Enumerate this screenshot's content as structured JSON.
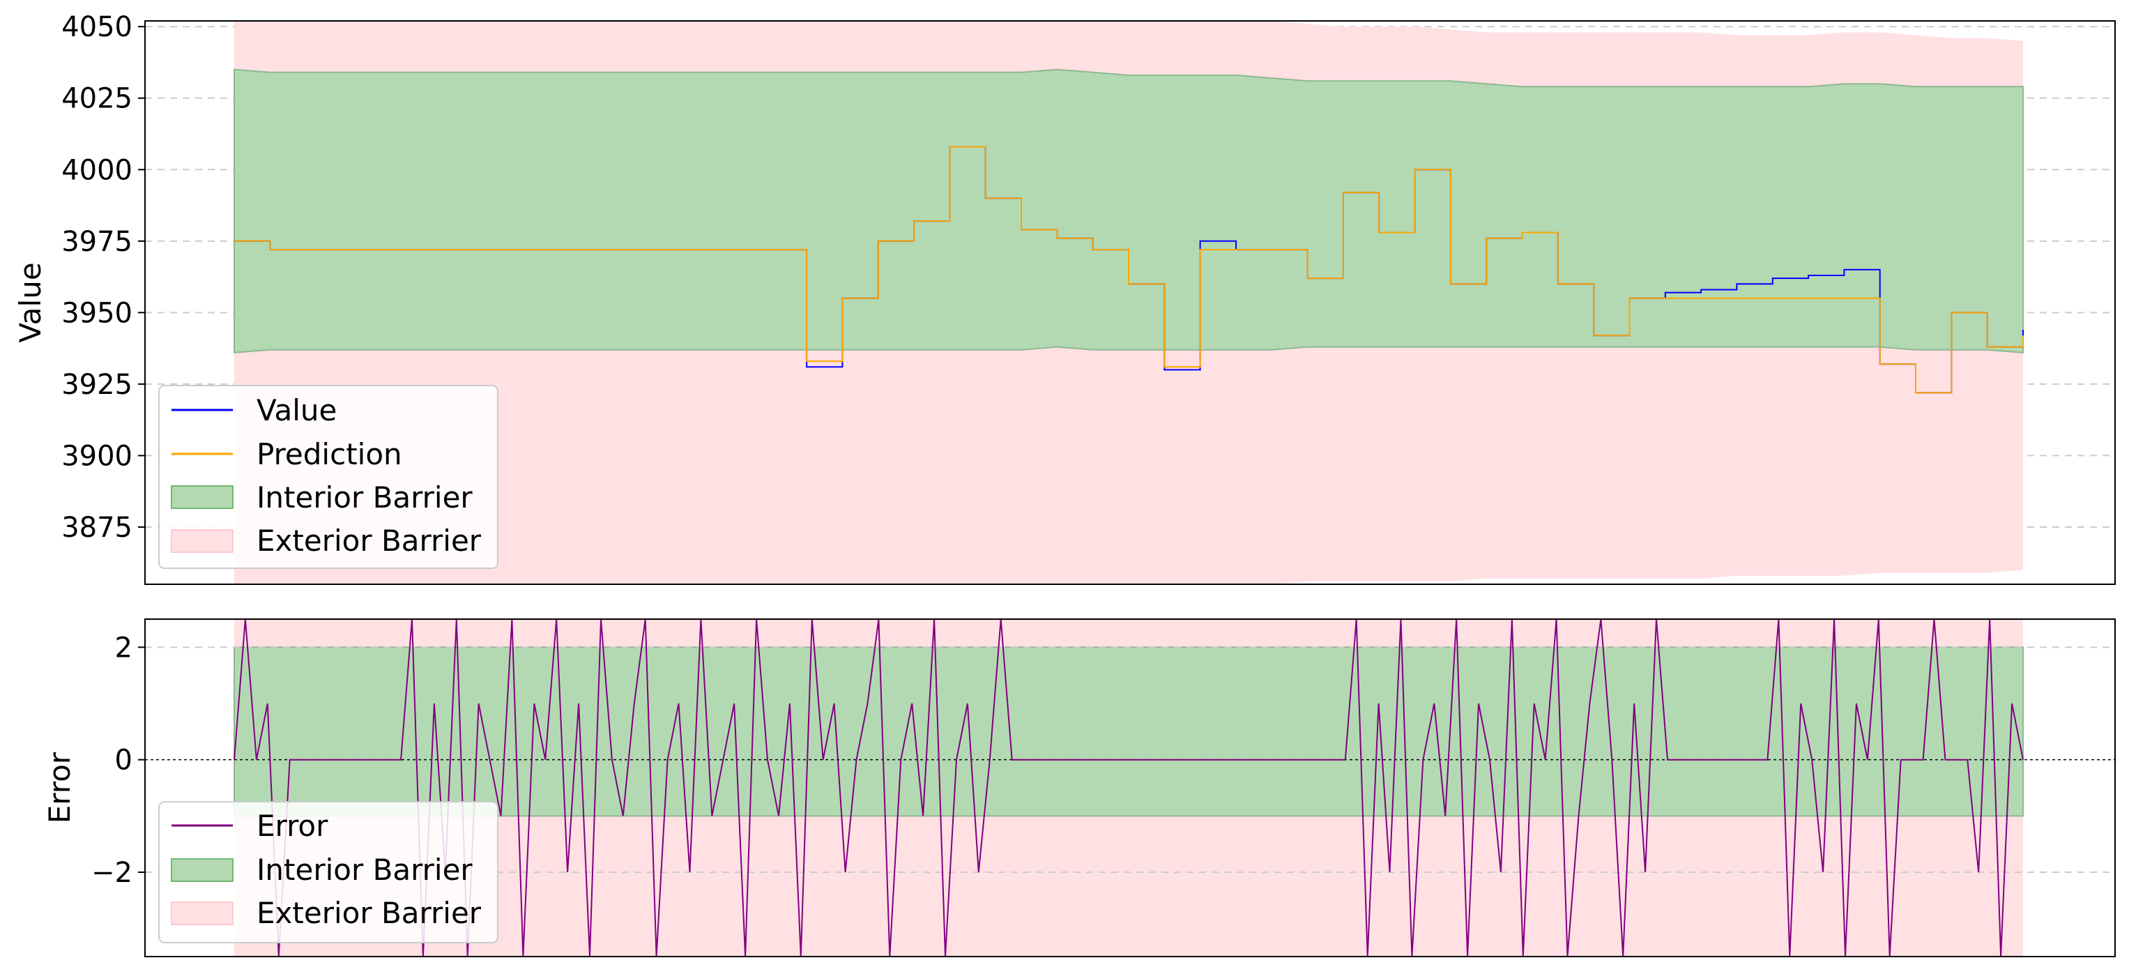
{
  "chart_data": [
    {
      "type": "line",
      "ylabel": "Value",
      "ylim": [
        3855,
        4052
      ],
      "yticks": [
        3875,
        3900,
        3925,
        3950,
        3975,
        4000,
        4025,
        4050
      ],
      "grid": "horizontal dashed",
      "legend_position": "lower-left",
      "legend": [
        "Value",
        "Prediction",
        "Interior Barrier",
        "Exterior Barrier"
      ],
      "x": [
        0,
        2,
        4,
        6,
        8,
        10,
        12,
        14,
        16,
        18,
        20,
        22,
        24,
        26,
        28,
        30,
        32,
        34,
        36,
        38,
        40,
        42,
        44,
        46,
        48,
        50,
        52,
        54,
        56,
        58,
        60,
        62,
        64,
        66,
        68,
        70,
        72,
        74,
        76,
        78,
        80,
        82,
        84,
        86,
        88,
        90,
        92,
        94,
        96,
        98,
        100
      ],
      "series": [
        {
          "name": "Value",
          "color": "#0000ff",
          "values": [
            3975,
            3972,
            3972,
            3972,
            3972,
            3972,
            3972,
            3972,
            3972,
            3972,
            3972,
            3972,
            3972,
            3972,
            3972,
            3972,
            3931,
            3955,
            3975,
            3982,
            4008,
            3990,
            3979,
            3976,
            3972,
            3960,
            3930,
            3975,
            3972,
            3972,
            3962,
            3992,
            3978,
            4000,
            3960,
            3976,
            3978,
            3960,
            3942,
            3955,
            3957,
            3958,
            3960,
            3962,
            3963,
            3965,
            3932,
            3922,
            3950,
            3938,
            3944
          ]
        },
        {
          "name": "Prediction",
          "color": "#ffa500",
          "values": [
            3975,
            3972,
            3972,
            3972,
            3972,
            3972,
            3972,
            3972,
            3972,
            3972,
            3972,
            3972,
            3972,
            3972,
            3972,
            3972,
            3933,
            3955,
            3975,
            3982,
            4008,
            3990,
            3979,
            3976,
            3972,
            3960,
            3931,
            3972,
            3972,
            3972,
            3962,
            3992,
            3978,
            4000,
            3960,
            3976,
            3978,
            3960,
            3942,
            3955,
            3955,
            3955,
            3955,
            3955,
            3955,
            3955,
            3932,
            3922,
            3950,
            3938,
            3942
          ]
        }
      ],
      "interior_barrier": {
        "color": "#b3d9b3",
        "upper": [
          4035,
          4034,
          4034,
          4034,
          4034,
          4034,
          4034,
          4034,
          4034,
          4034,
          4034,
          4034,
          4034,
          4034,
          4034,
          4034,
          4034,
          4034,
          4034,
          4034,
          4034,
          4034,
          4034,
          4035,
          4034,
          4033,
          4033,
          4033,
          4033,
          4032,
          4031,
          4031,
          4031,
          4031,
          4031,
          4030,
          4029,
          4029,
          4029,
          4029,
          4029,
          4029,
          4029,
          4029,
          4029,
          4030,
          4030,
          4029,
          4029,
          4029,
          4029
        ],
        "lower": [
          3936,
          3937,
          3937,
          3937,
          3937,
          3937,
          3937,
          3937,
          3937,
          3937,
          3937,
          3937,
          3937,
          3937,
          3937,
          3937,
          3937,
          3937,
          3937,
          3937,
          3937,
          3937,
          3937,
          3938,
          3937,
          3937,
          3937,
          3937,
          3937,
          3937,
          3938,
          3938,
          3938,
          3938,
          3938,
          3938,
          3938,
          3938,
          3938,
          3938,
          3938,
          3938,
          3938,
          3938,
          3938,
          3938,
          3938,
          3937,
          3937,
          3937,
          3936
        ]
      },
      "exterior_barrier": {
        "color": "#ffe0e3",
        "upper": [
          4053,
          4053,
          4053,
          4053,
          4053,
          4053,
          4053,
          4053,
          4053,
          4053,
          4053,
          4053,
          4053,
          4053,
          4053,
          4053,
          4053,
          4053,
          4053,
          4053,
          4053,
          4053,
          4053,
          4053,
          4053,
          4053,
          4053,
          4052,
          4052,
          4052,
          4051,
          4050,
          4050,
          4050,
          4049,
          4048,
          4048,
          4048,
          4048,
          4048,
          4048,
          4048,
          4047,
          4047,
          4047,
          4048,
          4048,
          4047,
          4046,
          4046,
          4045
        ],
        "lower": [
          3855,
          3855,
          3855,
          3855,
          3855,
          3855,
          3855,
          3855,
          3855,
          3855,
          3855,
          3855,
          3855,
          3855,
          3855,
          3855,
          3855,
          3855,
          3855,
          3855,
          3855,
          3855,
          3855,
          3855,
          3855,
          3855,
          3855,
          3855,
          3855,
          3855,
          3856,
          3856,
          3856,
          3856,
          3856,
          3857,
          3857,
          3857,
          3857,
          3857,
          3857,
          3857,
          3858,
          3858,
          3858,
          3858,
          3859,
          3859,
          3859,
          3859,
          3860
        ]
      }
    },
    {
      "type": "line",
      "ylabel": "Error",
      "ylim": [
        -3.5,
        2.5
      ],
      "yticks": [
        -2,
        0,
        2
      ],
      "grid": "horizontal dashed",
      "zero_line": "dotted black",
      "legend_position": "lower-left",
      "legend": [
        "Error",
        "Interior Barrier",
        "Exterior Barrier"
      ],
      "series": [
        {
          "name": "Error",
          "color": "#800080",
          "values": [
            0,
            2.5,
            0,
            1,
            -3.5,
            0,
            0,
            0,
            0,
            0,
            0,
            0,
            0,
            0,
            0,
            0,
            2.5,
            -3.5,
            1,
            -2,
            2.5,
            -3.5,
            1,
            0,
            -1,
            2.5,
            -3.5,
            1,
            0,
            2.5,
            -2,
            1,
            -3.5,
            2.5,
            0,
            -1,
            1,
            2.5,
            -3.5,
            0,
            1,
            -2,
            2.5,
            -1,
            0,
            1,
            -3.5,
            2.5,
            0,
            -1,
            1,
            -3.5,
            2.5,
            0,
            1,
            -2,
            0,
            1,
            2.5,
            -3.5,
            0,
            1,
            -1,
            2.5,
            -3.5,
            0,
            1,
            -2,
            0,
            2.5,
            0,
            0,
            0,
            0,
            0,
            0,
            0,
            0,
            0,
            0,
            0,
            0,
            0,
            0,
            0,
            0,
            0,
            0,
            0,
            0,
            0,
            0,
            0,
            0,
            0,
            0,
            0,
            0,
            0,
            0,
            0,
            2.5,
            -3.5,
            1,
            -2,
            2.5,
            -3.5,
            0,
            1,
            -1,
            2.5,
            -3.5,
            1,
            0,
            -2,
            2.5,
            -3.5,
            1,
            0,
            2.5,
            -3.5,
            -1,
            1,
            2.5,
            0,
            -3.5,
            1,
            -2,
            2.5,
            0,
            0,
            0,
            0,
            0,
            0,
            0,
            0,
            0,
            0,
            2.5,
            -3.5,
            1,
            0,
            -2,
            2.5,
            -3.5,
            1,
            0,
            2.5,
            -3.5,
            0,
            0,
            0,
            2.5,
            0,
            0,
            0,
            -2,
            2.5,
            -3.5,
            1,
            0
          ]
        }
      ],
      "interior_barrier": {
        "color": "#b3d9b3",
        "upper": 2,
        "lower": -1
      },
      "exterior_barrier": {
        "color": "#ffe0e3",
        "upper": 2.5,
        "lower": -3.5
      }
    }
  ]
}
